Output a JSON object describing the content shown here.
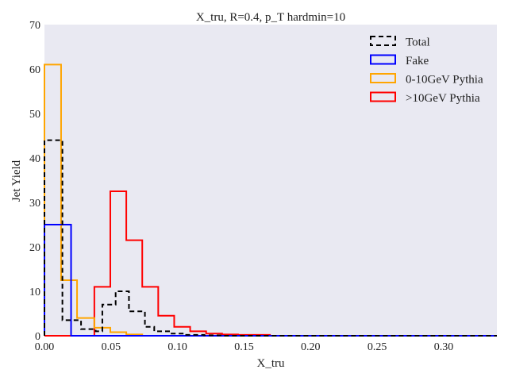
{
  "chart_data": {
    "type": "step-histogram",
    "title": "X_tru, R=0.4, p_T hardmin=10",
    "xlabel": "X_tru",
    "ylabel": "Jet Yield",
    "xlim": [
      0.0,
      0.34
    ],
    "ylim": [
      0,
      70
    ],
    "xticks": [
      0.0,
      0.05,
      0.1,
      0.15,
      0.2,
      0.25,
      0.3
    ],
    "xtick_labels": [
      "0.00",
      "0.05",
      "0.10",
      "0.15",
      "0.20",
      "0.25",
      "0.30"
    ],
    "yticks": [
      0,
      10,
      20,
      30,
      40,
      50,
      60,
      70
    ],
    "ytick_labels": [
      "0",
      "10",
      "20",
      "30",
      "40",
      "50",
      "60",
      "70"
    ],
    "grid": false,
    "background": "#e9e9f2",
    "legend_position": "top-right",
    "series": [
      {
        "name": "Total",
        "color": "#000000",
        "dashed": true,
        "bin_edges": [
          0.0,
          0.0135,
          0.0275,
          0.0385,
          0.0435,
          0.0535,
          0.0635,
          0.0755,
          0.0825,
          0.0955,
          0.105,
          0.12,
          0.133,
          0.34
        ],
        "values": [
          44,
          3.5,
          1.5,
          1,
          7,
          10,
          5.5,
          2,
          1,
          0.5,
          0.2,
          0.1,
          0
        ]
      },
      {
        "name": "Fake",
        "color": "#0000ff",
        "dashed": false,
        "bin_edges": [
          0.0,
          0.02,
          0.34
        ],
        "values": [
          25,
          0
        ]
      },
      {
        "name": "0-10GeV Pythia",
        "color": "#ffa500",
        "dashed": false,
        "bin_edges": [
          0.0,
          0.0125,
          0.0245,
          0.0375,
          0.0495,
          0.0615,
          0.0735,
          0.34
        ],
        "values": [
          61,
          12.5,
          4,
          1.8,
          0.8,
          0.3,
          0
        ]
      },
      {
        "name": ">10GeV Pythia",
        "color": "#ff0000",
        "dashed": false,
        "bin_edges": [
          0.0,
          0.0375,
          0.0495,
          0.0615,
          0.0735,
          0.0855,
          0.0975,
          0.1095,
          0.1215,
          0.1335,
          0.1455,
          0.1695,
          0.34
        ],
        "values": [
          0,
          11,
          32.5,
          21.5,
          11,
          4.5,
          2,
          1,
          0.5,
          0.3,
          0.2,
          0
        ]
      }
    ]
  }
}
